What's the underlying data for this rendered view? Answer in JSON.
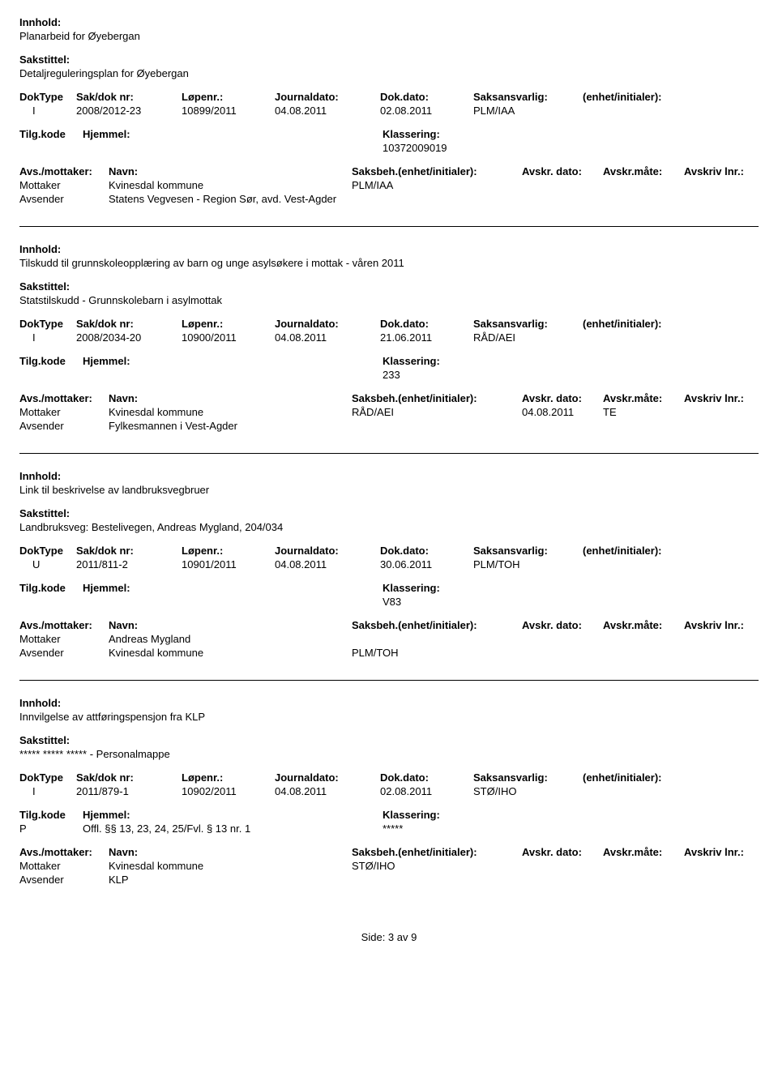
{
  "labels": {
    "innhold": "Innhold:",
    "sakstittel": "Sakstittel:",
    "doktype": "DokType",
    "sakdok": "Sak/dok nr:",
    "lopenr": "Løpenr.:",
    "journaldato": "Journaldato:",
    "dokdato": "Dok.dato:",
    "saksansvarlig": "Saksansvarlig:",
    "enhet": "(enhet/initialer):",
    "tilgkode": "Tilg.kode",
    "hjemmel": "Hjemmel:",
    "klassering": "Klassering:",
    "avs_mottaker": "Avs./mottaker:",
    "navn": "Navn:",
    "saksbeh": "Saksbeh.(enhet/initialer):",
    "avskr_dato": "Avskr. dato:",
    "avskr_mate": "Avskr.måte:",
    "avskriv_lnr": "Avskriv lnr.:",
    "mottaker": "Mottaker",
    "avsender": "Avsender"
  },
  "footer": "Side: 3 av 9",
  "records": [
    {
      "innhold": "Planarbeid for Øyebergan",
      "sakstittel": "Detaljreguleringsplan for Øyebergan",
      "doktype": "I",
      "sakdok": "2008/2012-23",
      "lopenr": "10899/2011",
      "journaldato": "04.08.2011",
      "dokdato": "02.08.2011",
      "saksansvarlig": "PLM/IAA",
      "hjemmel_p": "",
      "hjemmel_text": "",
      "klassering": "10372009019",
      "mottaker_navn": "Kvinesdal kommune",
      "mottaker_saksbeh": "PLM/IAA",
      "mottaker_avskr_dato": "",
      "mottaker_avskr_mate": "",
      "avsender_navn": "Statens Vegvesen - Region Sør, avd. Vest-Agder"
    },
    {
      "innhold": "Tilskudd til grunnskoleopplæring av barn og unge asylsøkere i mottak - våren 2011",
      "sakstittel": "Statstilskudd - Grunnskolebarn i asylmottak",
      "doktype": "I",
      "sakdok": "2008/2034-20",
      "lopenr": "10900/2011",
      "journaldato": "04.08.2011",
      "dokdato": "21.06.2011",
      "saksansvarlig": "RÅD/AEI",
      "hjemmel_p": "",
      "hjemmel_text": "",
      "klassering": "233",
      "mottaker_navn": "Kvinesdal kommune",
      "mottaker_saksbeh": "RÅD/AEI",
      "mottaker_avskr_dato": "04.08.2011",
      "mottaker_avskr_mate": "TE",
      "avsender_navn": "Fylkesmannen i Vest-Agder"
    },
    {
      "innhold": "Link til beskrivelse av landbruksvegbruer",
      "sakstittel": "Landbruksveg: Bestelivegen, Andreas Mygland, 204/034",
      "doktype": "U",
      "sakdok": "2011/811-2",
      "lopenr": "10901/2011",
      "journaldato": "04.08.2011",
      "dokdato": "30.06.2011",
      "saksansvarlig": "PLM/TOH",
      "hjemmel_p": "",
      "hjemmel_text": "",
      "klassering": "V83",
      "mottaker_navn": "Andreas Mygland",
      "mottaker_saksbeh": "",
      "mottaker_avskr_dato": "",
      "mottaker_avskr_mate": "",
      "avsender_navn": "Kvinesdal kommune",
      "avsender_saksbeh": "PLM/TOH"
    },
    {
      "innhold": "Innvilgelse av attføringspensjon fra KLP",
      "sakstittel": "***** ***** ***** - Personalmappe",
      "doktype": "I",
      "sakdok": "2011/879-1",
      "lopenr": "10902/2011",
      "journaldato": "04.08.2011",
      "dokdato": "02.08.2011",
      "saksansvarlig": "STØ/IHO",
      "hjemmel_p": "P",
      "hjemmel_text": "Offl. §§ 13, 23, 24, 25/Fvl. § 13 nr. 1",
      "klassering": "*****",
      "mottaker_navn": "Kvinesdal kommune",
      "mottaker_saksbeh": "STØ/IHO",
      "mottaker_avskr_dato": "",
      "mottaker_avskr_mate": "",
      "avsender_navn": "KLP"
    }
  ]
}
